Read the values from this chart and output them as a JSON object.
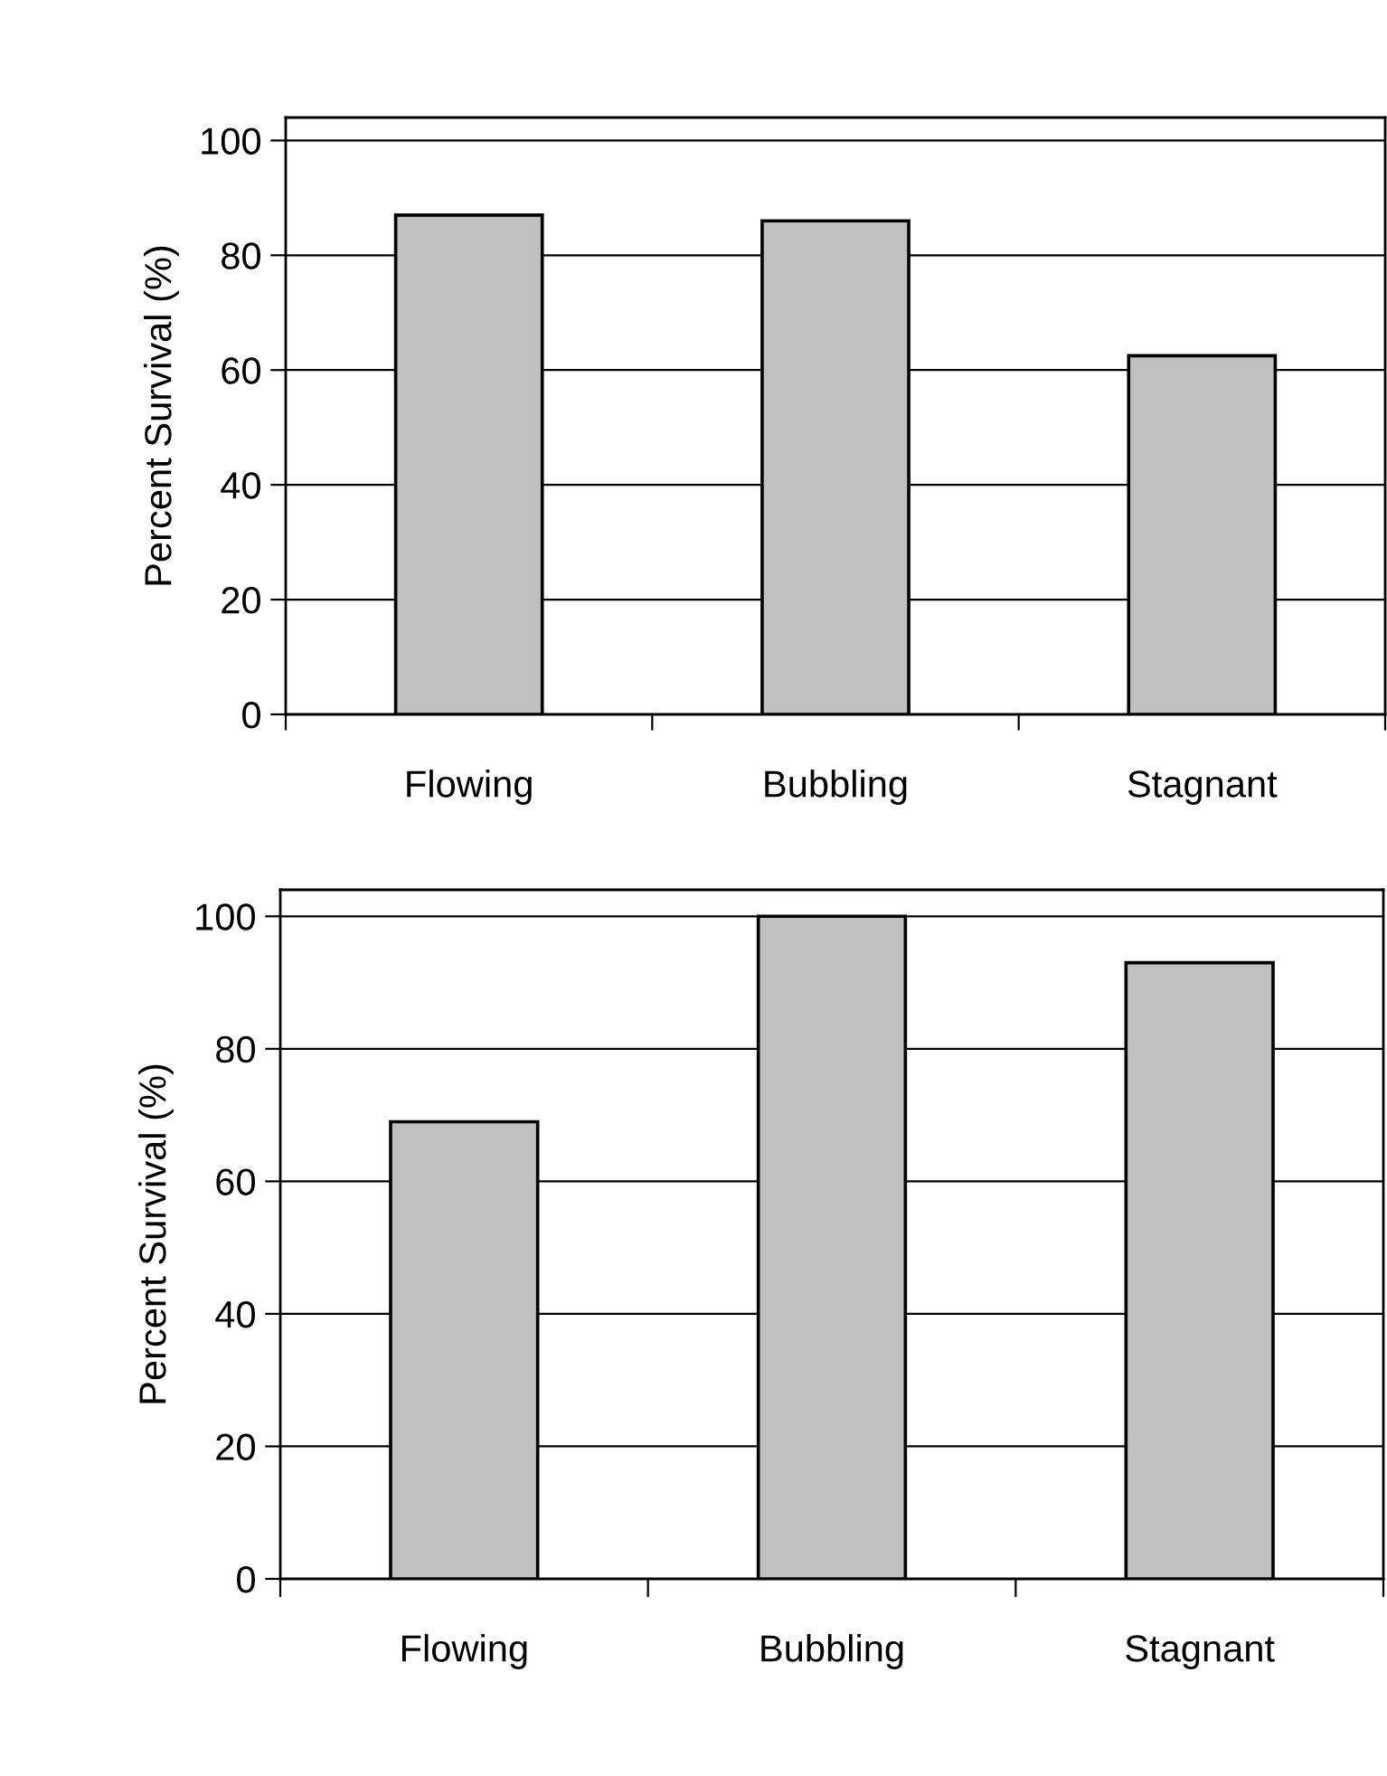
{
  "chart_data": [
    {
      "type": "bar",
      "categories": [
        "Flowing",
        "Bubbling",
        "Stagnant"
      ],
      "values": [
        87,
        86,
        62.5
      ],
      "color": "#c0c0c0",
      "ylabel": "Percent Survival (%)",
      "ylim": [
        0,
        104
      ],
      "yticks": [
        0,
        20,
        40,
        60,
        80,
        100
      ],
      "grid": "y"
    },
    {
      "type": "bar",
      "categories": [
        "Flowing",
        "Bubbling",
        "Stagnant"
      ],
      "values": [
        69,
        100,
        93
      ],
      "color": "#c0c0c0",
      "ylabel": "Percent Survival (%)",
      "ylim": [
        0,
        104
      ],
      "yticks": [
        0,
        20,
        40,
        60,
        80,
        100
      ],
      "grid": "y"
    }
  ]
}
